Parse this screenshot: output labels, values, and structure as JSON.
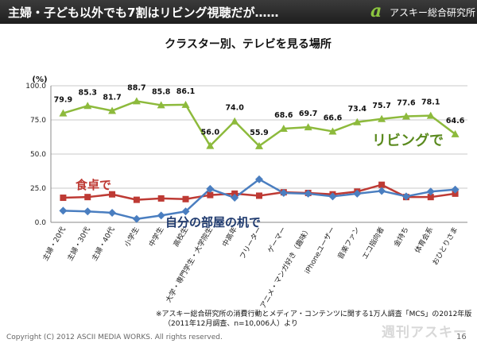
{
  "header": {
    "title": "主婦・子ども以外でも7割はリビング視聴だが……",
    "logo_mark": "a",
    "logo_text": "アスキー総合研究所"
  },
  "footer": {
    "note_line1": "※アスキー総合研究所の消費行動とメディア・コンテンツに関する1万人調査「MCS」の2012年版",
    "note_line2": "（2011年12月調査、n=10,006人）より",
    "copyright": "Copyright (C) 2012 ASCII MEDIA WORKS. All rights reserved.",
    "page_number": "16",
    "watermark": "週刊アスキー"
  },
  "colors": {
    "living": "#8dba3c",
    "dining": "#be3a34",
    "own_room": "#4a7ec0",
    "header_bg": "#2a2a2a",
    "series_label": "#5a8a1e"
  },
  "chart_data": {
    "type": "line",
    "title": "クラスター別、テレビを見る場所",
    "ylabel": "(%)",
    "xlabel": "",
    "ylim": [
      0,
      100
    ],
    "yticks": [
      0,
      25,
      50,
      75,
      100
    ],
    "ytick_labels": [
      "0.0",
      "25.0",
      "50.0",
      "75.0",
      "100.0"
    ],
    "grid": true,
    "categories": [
      "主婦・20代",
      "主婦・30代",
      "主婦・40代",
      "小学生",
      "中学生",
      "高校生",
      "大学・専門学生・大学院生",
      "中高年",
      "フリーター",
      "ゲーマー",
      "アニメ・マンガ好き（趣味）",
      "iPhoneユーザー",
      "音楽ファン",
      "エコ指向者",
      "金持ち",
      "体育会系",
      "おひとりさま"
    ],
    "series": [
      {
        "name": "リビングで",
        "label": "リビングで",
        "marker": "triangle",
        "values": [
          79.9,
          85.3,
          81.7,
          88.7,
          85.8,
          86.1,
          56.0,
          74.0,
          55.9,
          68.6,
          69.7,
          66.6,
          73.4,
          75.7,
          77.6,
          78.1,
          64.6
        ],
        "value_labels": [
          "79.9",
          "85.3",
          "81.7",
          "88.7",
          "85.8",
          "86.1",
          "56.0",
          "74.0",
          "55.9",
          "68.6",
          "69.7",
          "66.6",
          "73.4",
          "75.7",
          "77.6",
          "78.1",
          "64.6"
        ]
      },
      {
        "name": "食卓で",
        "label": "食卓で",
        "marker": "square",
        "values": [
          18,
          18.5,
          20.5,
          16.5,
          17.5,
          17,
          20,
          21,
          19.5,
          22,
          21.5,
          20.5,
          22.5,
          27.5,
          18.5,
          18.5,
          21
        ]
      },
      {
        "name": "自分の部屋の机で",
        "label": "自分の部屋の机で",
        "marker": "diamond",
        "values": [
          8.5,
          8,
          7,
          2.5,
          5,
          8,
          24.5,
          18,
          31.5,
          21.5,
          21,
          19,
          21,
          23,
          19,
          22.5,
          24
        ]
      }
    ]
  }
}
